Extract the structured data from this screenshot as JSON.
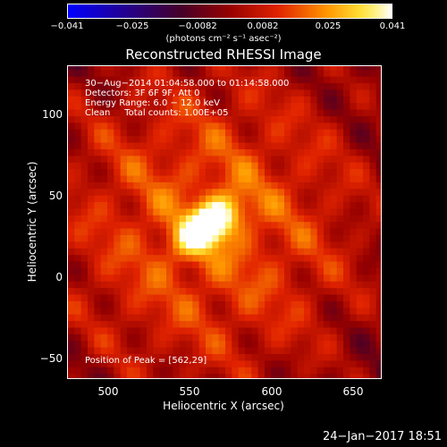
{
  "colorbar": {
    "ticks": [
      "−0.041",
      "−0.025",
      "−0.0082",
      "0.0082",
      "0.025",
      "0.041"
    ],
    "unit_label": "(photons cm⁻² s⁻¹ asec⁻²)",
    "min": -0.041,
    "max": 0.041
  },
  "chart_data": {
    "type": "heatmap",
    "title": "Reconstructed RHESSI Image",
    "xlabel": "Heliocentric X (arcsec)",
    "ylabel": "Heliocentric Y (arcsec)",
    "xlim": [
      476,
      668
    ],
    "ylim": [
      -65,
      125
    ],
    "xticks": [
      "500",
      "550",
      "600",
      "650"
    ],
    "yticks": [
      "100",
      "50",
      "0",
      "−50"
    ],
    "peak": {
      "x": 562,
      "y": 29
    },
    "annotations": [
      "30−Aug−2014 01:04:58.000 to 01:14:58.000",
      "Detectors: 3F 6F 9F, Att 0",
      "Energy Range: 6.0 − 12.0 keV",
      "Clean     Total counts: 1.00E+05"
    ],
    "peak_label": "Position of Peak = [562,29]"
  },
  "footer": {
    "timestamp": "24−Jan−2017 18:51"
  }
}
